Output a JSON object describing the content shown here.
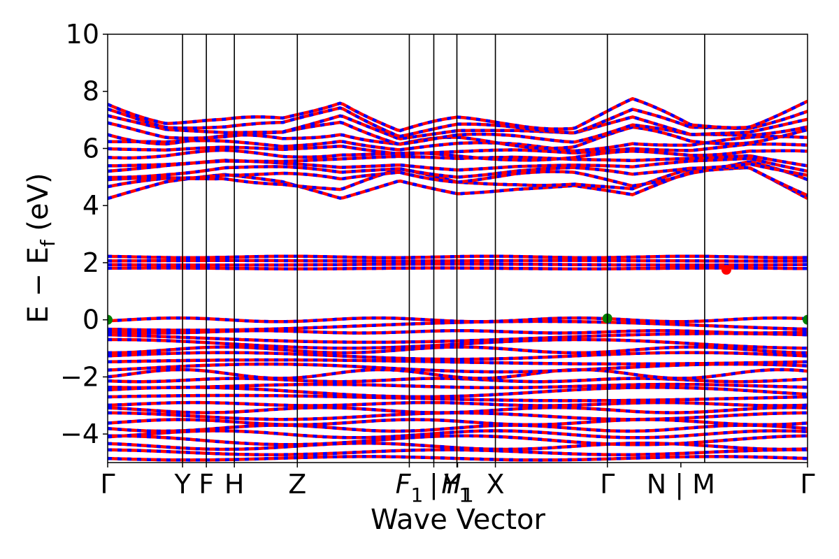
{
  "chart_data": {
    "type": "line",
    "title": "",
    "xlabel": "Wave Vector",
    "ylabel": "E − E_f (eV)",
    "ylabel_parts": {
      "main": "E − E",
      "sub": "f",
      "unit": " (eV)"
    },
    "ylim": [
      -5,
      10
    ],
    "yticks": [
      -4,
      -2,
      0,
      2,
      4,
      6,
      8,
      10
    ],
    "ytick_labels": [
      "−4",
      "−2",
      "0",
      "2",
      "4",
      "6",
      "8",
      "10"
    ],
    "grid": false,
    "legend": "none",
    "kpoint_labels": [
      {
        "k": 0.0,
        "label": "Γ"
      },
      {
        "k": 0.107,
        "label": "Y"
      },
      {
        "k": 0.141,
        "label": "F"
      },
      {
        "k": 0.181,
        "label": "H"
      },
      {
        "k": 0.271,
        "label": "Z"
      },
      {
        "k": 0.431,
        "label": "F",
        "sub": "1"
      },
      {
        "k": 0.466,
        "label": "|"
      },
      {
        "k": 0.499,
        "label": "Y",
        "sub": "1"
      },
      {
        "k": 0.5,
        "label": "H",
        "sub": "1"
      },
      {
        "k": 0.554,
        "label": "X"
      },
      {
        "k": 0.714,
        "label": "Γ"
      },
      {
        "k": 0.819,
        "label": "N | M"
      },
      {
        "k": 1.0,
        "label": "Γ"
      }
    ],
    "vertical_lines_k": [
      0.107,
      0.141,
      0.181,
      0.271,
      0.431,
      0.466,
      0.499,
      0.554,
      0.714,
      0.853
    ],
    "band_groups": [
      {
        "name": "conduction",
        "count": 14,
        "min": [
          4.25,
          4.7,
          4.9,
          4.7,
          4.25,
          5.0,
          4.6,
          4.7,
          4.7,
          4.25,
          5.0,
          5.2,
          4.25
        ],
        "max": [
          7.6,
          7.0,
          6.9,
          7.0,
          7.75,
          6.6,
          6.95,
          6.9,
          6.8,
          7.6,
          6.8,
          6.9,
          7.6
        ]
      },
      {
        "name": "midgap",
        "count": 4,
        "min": 1.8,
        "max": 2.2
      },
      {
        "name": "valence",
        "count": 24,
        "min": -4.85,
        "max": 0.0
      }
    ],
    "series_colors": {
      "spin_up": "#0000ff",
      "spin_down": "#ff0000",
      "vbm_cbm_marker": "#008000"
    },
    "markers": [
      {
        "k": 0.0,
        "E": 0.0,
        "color": "#008000"
      },
      {
        "k": 0.714,
        "E": 0.05,
        "color": "#008000"
      },
      {
        "k": 1.0,
        "E": 0.0,
        "color": "#008000"
      },
      {
        "k": 0.884,
        "E": 1.75,
        "color": "#ff0000"
      }
    ]
  }
}
